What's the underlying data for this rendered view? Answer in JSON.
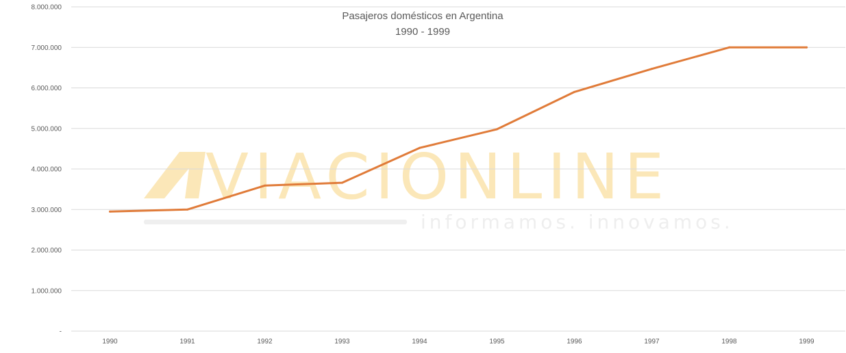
{
  "chart_data": {
    "type": "line",
    "title": "Pasajeros domésticos en Argentina",
    "subtitle": "1990 - 1999",
    "x": [
      "1990",
      "1991",
      "1992",
      "1993",
      "1994",
      "1995",
      "1996",
      "1997",
      "1998",
      "1999"
    ],
    "series": [
      {
        "values": [
          2950000,
          3000000,
          3590000,
          3660000,
          4520000,
          4980000,
          5900000,
          6470000,
          7000000,
          7000000
        ]
      }
    ],
    "ylim": [
      0,
      8000000
    ],
    "yticks": [
      "-",
      "1.000.000",
      "2.000.000",
      "3.000.000",
      "4.000.000",
      "5.000.000",
      "6.000.000",
      "7.000.000",
      "8.000.000"
    ],
    "grid": true,
    "legend": "none",
    "colors": {
      "line": "#e07b39",
      "grid": "#d9d9d9",
      "text": "#595959"
    }
  },
  "watermark": {
    "brand": "VIACIONLINE",
    "tagline": "informamos. innovamos."
  }
}
